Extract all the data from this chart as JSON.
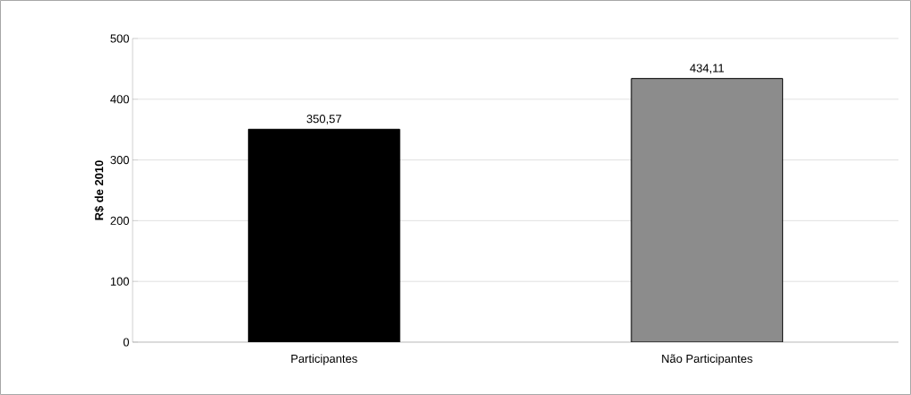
{
  "chart_data": {
    "type": "bar",
    "ylabel": "R$ de 2010",
    "categories": [
      "Participantes",
      "Não Participantes"
    ],
    "values": [
      350.57,
      434.11
    ],
    "colors": [
      "#000000",
      "#8c8c8c"
    ],
    "value_labels": [
      "350,57",
      "434,11"
    ],
    "ylim": [
      0,
      500
    ],
    "yticks": [
      0,
      100,
      200,
      300,
      400,
      500
    ],
    "grid": "y"
  }
}
